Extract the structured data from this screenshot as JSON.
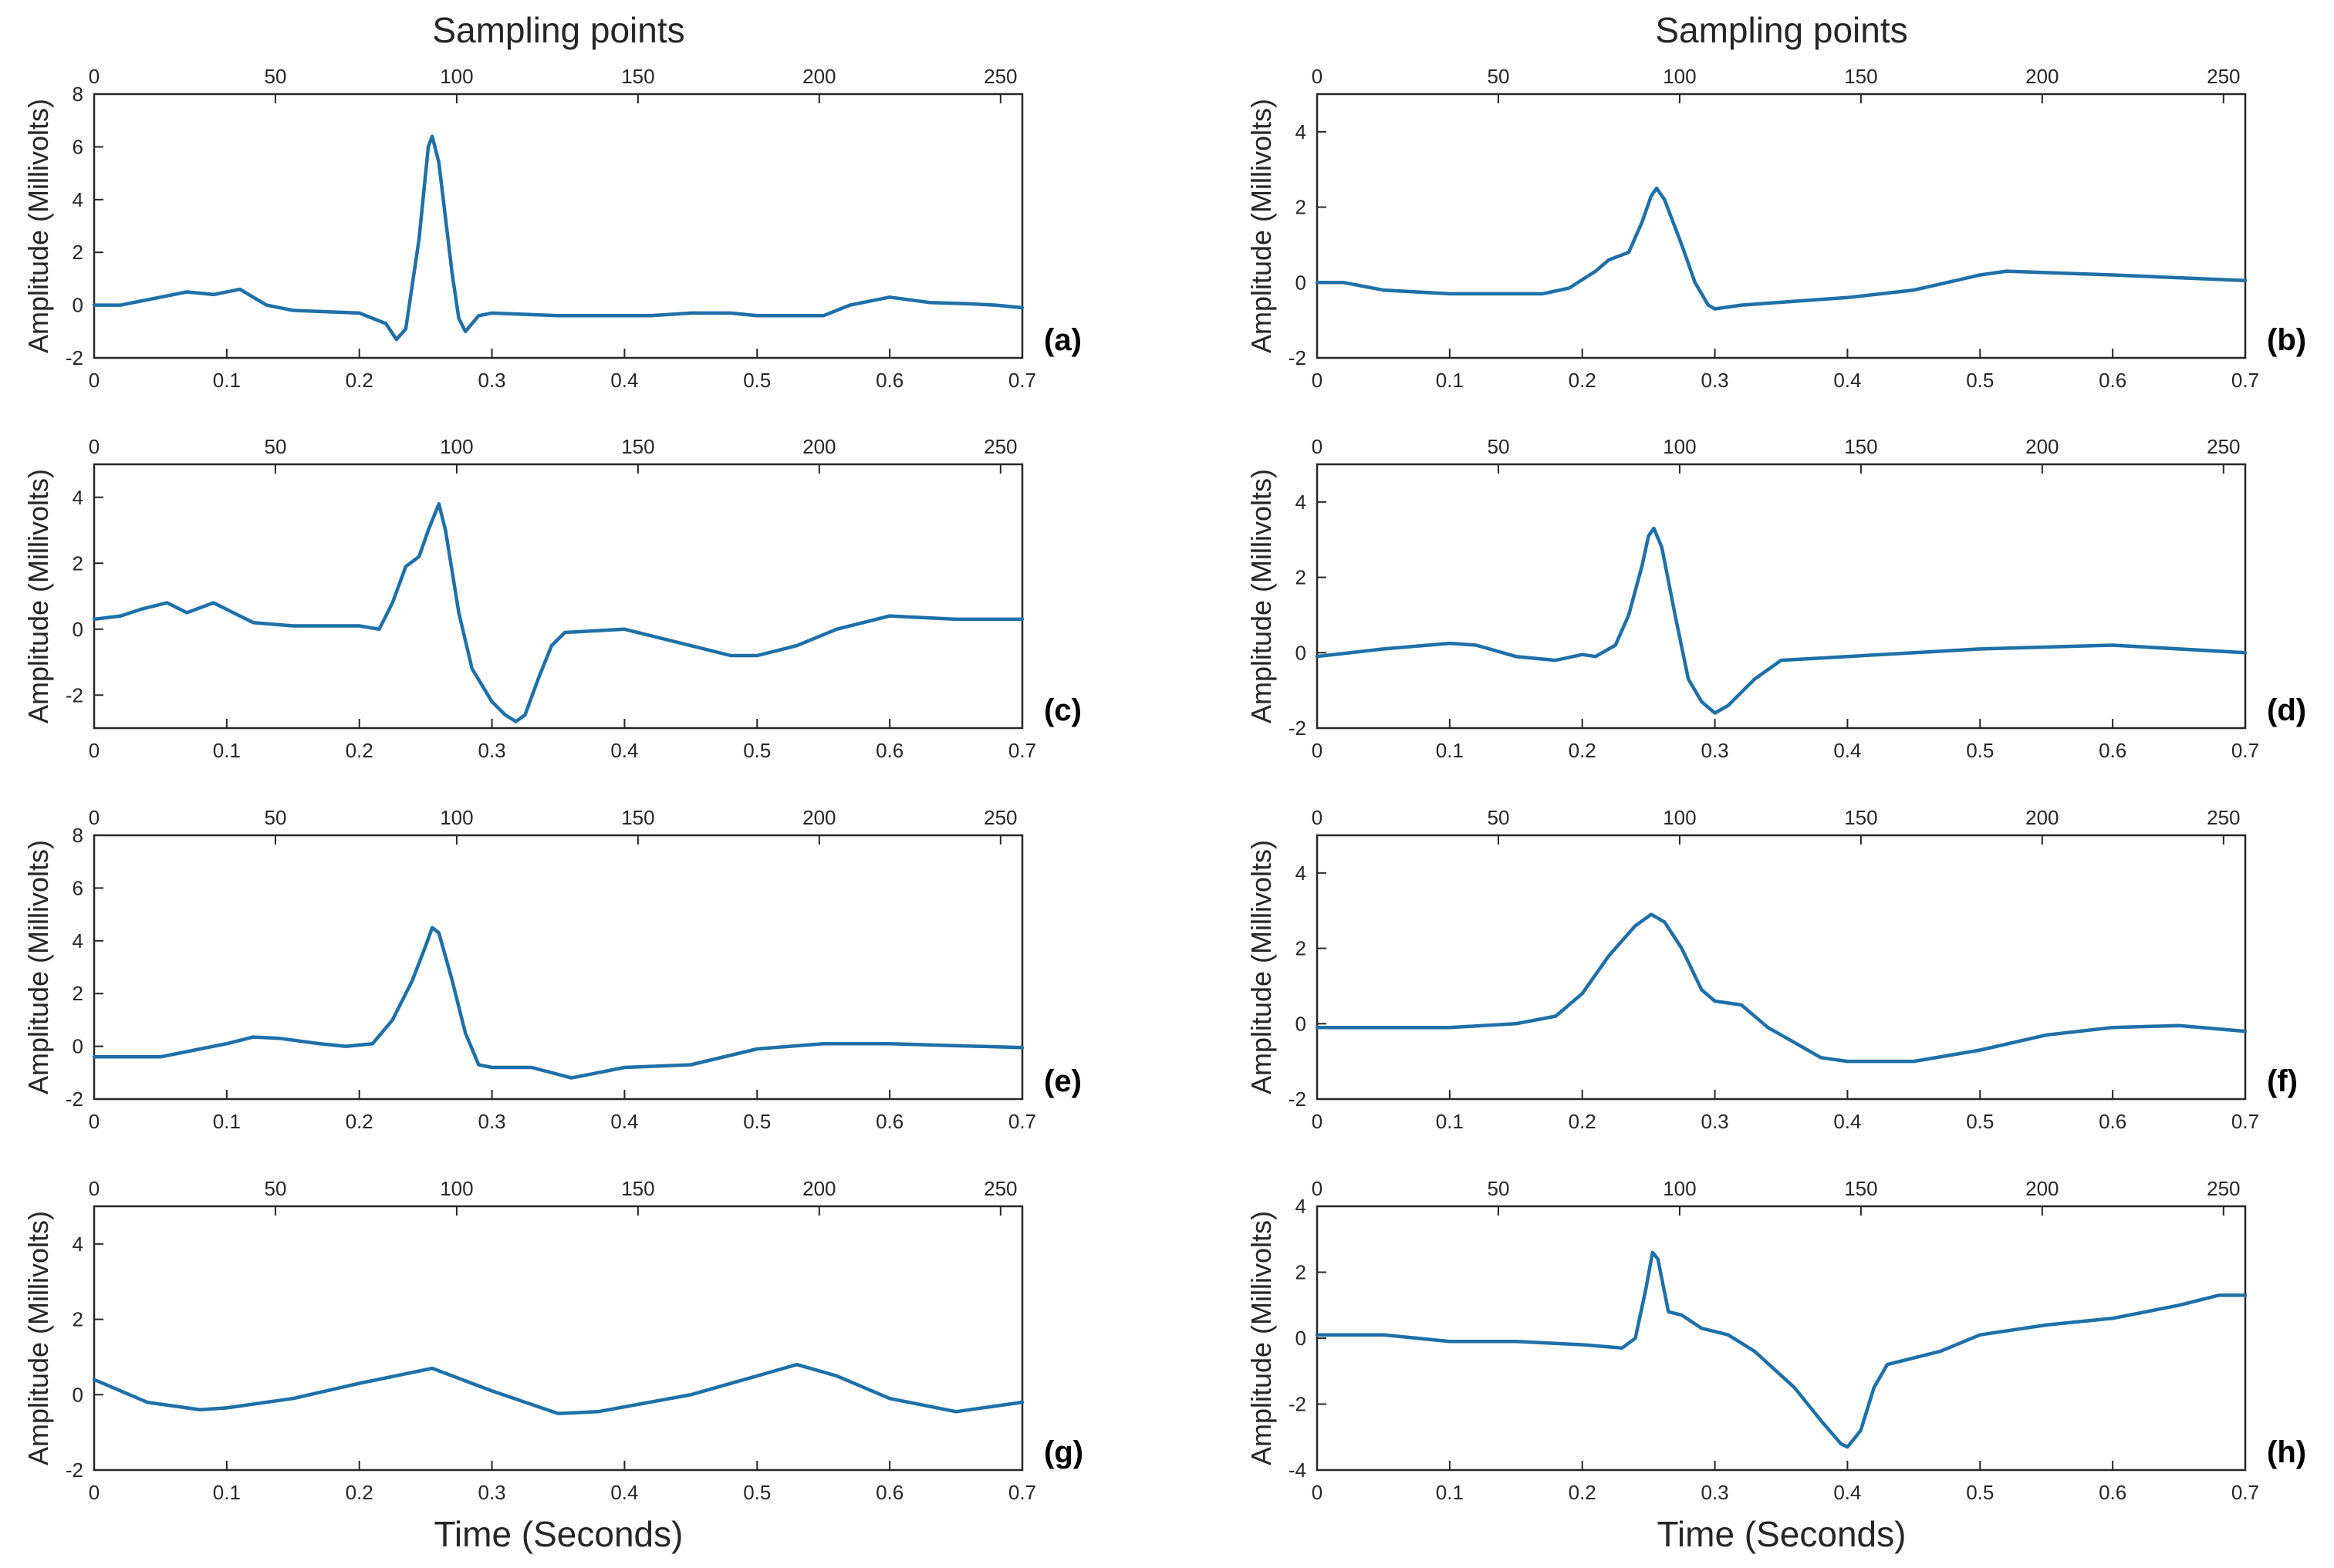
{
  "figure": {
    "top_axis_label": "Sampling points",
    "bottom_axis_label": "Time (Seconds)",
    "y_axis_label": "Amplitude (Millivolts)",
    "line_color": "#1f6fa8",
    "axis_color": "#262626"
  },
  "chart_data": [
    {
      "type": "line",
      "label": "(a)",
      "xlim": [
        0,
        0.7
      ],
      "ylim": [
        -2,
        8
      ],
      "yticks": [
        -2,
        0,
        2,
        4,
        6,
        8
      ],
      "xticks": [
        0,
        0.1,
        0.2,
        0.3,
        0.4,
        0.5,
        0.6,
        0.7
      ],
      "top_xlim": [
        0,
        256
      ],
      "top_xticks": [
        0,
        50,
        100,
        150,
        200,
        250
      ],
      "points": [
        [
          0,
          0
        ],
        [
          0.02,
          0
        ],
        [
          0.05,
          0.3
        ],
        [
          0.07,
          0.5
        ],
        [
          0.09,
          0.4
        ],
        [
          0.11,
          0.6
        ],
        [
          0.13,
          0
        ],
        [
          0.15,
          -0.2
        ],
        [
          0.2,
          -0.3
        ],
        [
          0.22,
          -0.7
        ],
        [
          0.228,
          -1.3
        ],
        [
          0.235,
          -0.9
        ],
        [
          0.245,
          2.5
        ],
        [
          0.252,
          6.0
        ],
        [
          0.255,
          6.4
        ],
        [
          0.26,
          5.4
        ],
        [
          0.27,
          1.2
        ],
        [
          0.275,
          -0.5
        ],
        [
          0.28,
          -1.0
        ],
        [
          0.29,
          -0.4
        ],
        [
          0.3,
          -0.3
        ],
        [
          0.35,
          -0.4
        ],
        [
          0.42,
          -0.4
        ],
        [
          0.45,
          -0.3
        ],
        [
          0.48,
          -0.3
        ],
        [
          0.5,
          -0.4
        ],
        [
          0.55,
          -0.4
        ],
        [
          0.57,
          0
        ],
        [
          0.6,
          0.3
        ],
        [
          0.63,
          0.1
        ],
        [
          0.66,
          0.05
        ],
        [
          0.68,
          0
        ],
        [
          0.7,
          -0.1
        ]
      ]
    },
    {
      "type": "line",
      "label": "(b)",
      "xlim": [
        0,
        0.7
      ],
      "ylim": [
        -2,
        5
      ],
      "yticks": [
        -2,
        0,
        2,
        4
      ],
      "xticks": [
        0,
        0.1,
        0.2,
        0.3,
        0.4,
        0.5,
        0.6,
        0.7
      ],
      "top_xlim": [
        0,
        256
      ],
      "top_xticks": [
        0,
        50,
        100,
        150,
        200,
        250
      ],
      "points": [
        [
          0,
          0
        ],
        [
          0.02,
          0
        ],
        [
          0.05,
          -0.2
        ],
        [
          0.1,
          -0.3
        ],
        [
          0.17,
          -0.3
        ],
        [
          0.19,
          -0.15
        ],
        [
          0.21,
          0.3
        ],
        [
          0.22,
          0.6
        ],
        [
          0.235,
          0.8
        ],
        [
          0.245,
          1.6
        ],
        [
          0.252,
          2.3
        ],
        [
          0.256,
          2.5
        ],
        [
          0.262,
          2.2
        ],
        [
          0.275,
          1.0
        ],
        [
          0.285,
          0
        ],
        [
          0.295,
          -0.6
        ],
        [
          0.3,
          -0.7
        ],
        [
          0.32,
          -0.6
        ],
        [
          0.4,
          -0.4
        ],
        [
          0.45,
          -0.2
        ],
        [
          0.5,
          0.2
        ],
        [
          0.52,
          0.3
        ],
        [
          0.6,
          0.2
        ],
        [
          0.7,
          0.05
        ]
      ]
    },
    {
      "type": "line",
      "label": "(c)",
      "xlim": [
        0,
        0.7
      ],
      "ylim": [
        -3,
        5
      ],
      "yticks": [
        -2,
        0,
        2,
        4
      ],
      "xticks": [
        0,
        0.1,
        0.2,
        0.3,
        0.4,
        0.5,
        0.6,
        0.7
      ],
      "top_xlim": [
        0,
        256
      ],
      "top_xticks": [
        0,
        50,
        100,
        150,
        200,
        250
      ],
      "points": [
        [
          0,
          0.3
        ],
        [
          0.02,
          0.4
        ],
        [
          0.035,
          0.6
        ],
        [
          0.055,
          0.8
        ],
        [
          0.07,
          0.5
        ],
        [
          0.09,
          0.8
        ],
        [
          0.1,
          0.6
        ],
        [
          0.12,
          0.2
        ],
        [
          0.15,
          0.1
        ],
        [
          0.2,
          0.1
        ],
        [
          0.215,
          0
        ],
        [
          0.225,
          0.8
        ],
        [
          0.235,
          1.9
        ],
        [
          0.245,
          2.2
        ],
        [
          0.252,
          3.0
        ],
        [
          0.26,
          3.8
        ],
        [
          0.265,
          3.0
        ],
        [
          0.275,
          0.5
        ],
        [
          0.285,
          -1.2
        ],
        [
          0.3,
          -2.2
        ],
        [
          0.31,
          -2.6
        ],
        [
          0.318,
          -2.8
        ],
        [
          0.325,
          -2.6
        ],
        [
          0.335,
          -1.5
        ],
        [
          0.345,
          -0.5
        ],
        [
          0.355,
          -0.1
        ],
        [
          0.4,
          0
        ],
        [
          0.42,
          -0.2
        ],
        [
          0.45,
          -0.5
        ],
        [
          0.48,
          -0.8
        ],
        [
          0.5,
          -0.8
        ],
        [
          0.53,
          -0.5
        ],
        [
          0.56,
          0
        ],
        [
          0.6,
          0.4
        ],
        [
          0.65,
          0.3
        ],
        [
          0.7,
          0.3
        ]
      ]
    },
    {
      "type": "line",
      "label": "(d)",
      "xlim": [
        0,
        0.7
      ],
      "ylim": [
        -2,
        5
      ],
      "yticks": [
        -2,
        0,
        2,
        4
      ],
      "xticks": [
        0,
        0.1,
        0.2,
        0.3,
        0.4,
        0.5,
        0.6,
        0.7
      ],
      "top_xlim": [
        0,
        256
      ],
      "top_xticks": [
        0,
        50,
        100,
        150,
        200,
        250
      ],
      "points": [
        [
          0,
          -0.1
        ],
        [
          0.05,
          0.1
        ],
        [
          0.1,
          0.25
        ],
        [
          0.12,
          0.2
        ],
        [
          0.15,
          -0.1
        ],
        [
          0.18,
          -0.2
        ],
        [
          0.2,
          -0.05
        ],
        [
          0.21,
          -0.1
        ],
        [
          0.225,
          0.2
        ],
        [
          0.235,
          1.0
        ],
        [
          0.245,
          2.3
        ],
        [
          0.25,
          3.1
        ],
        [
          0.254,
          3.3
        ],
        [
          0.26,
          2.8
        ],
        [
          0.27,
          1.0
        ],
        [
          0.28,
          -0.7
        ],
        [
          0.29,
          -1.3
        ],
        [
          0.3,
          -1.6
        ],
        [
          0.31,
          -1.4
        ],
        [
          0.33,
          -0.7
        ],
        [
          0.35,
          -0.2
        ],
        [
          0.4,
          -0.1
        ],
        [
          0.5,
          0.1
        ],
        [
          0.6,
          0.2
        ],
        [
          0.7,
          0
        ]
      ]
    },
    {
      "type": "line",
      "label": "(e)",
      "xlim": [
        0,
        0.7
      ],
      "ylim": [
        -2,
        8
      ],
      "yticks": [
        -2,
        0,
        2,
        4,
        6,
        8
      ],
      "xticks": [
        0,
        0.1,
        0.2,
        0.3,
        0.4,
        0.5,
        0.6,
        0.7
      ],
      "top_xlim": [
        0,
        256
      ],
      "top_xticks": [
        0,
        50,
        100,
        150,
        200,
        250
      ],
      "points": [
        [
          0,
          -0.4
        ],
        [
          0.05,
          -0.4
        ],
        [
          0.08,
          -0.1
        ],
        [
          0.1,
          0.1
        ],
        [
          0.12,
          0.35
        ],
        [
          0.14,
          0.3
        ],
        [
          0.17,
          0.1
        ],
        [
          0.19,
          0
        ],
        [
          0.21,
          0.1
        ],
        [
          0.225,
          1.0
        ],
        [
          0.24,
          2.5
        ],
        [
          0.25,
          3.8
        ],
        [
          0.255,
          4.5
        ],
        [
          0.26,
          4.3
        ],
        [
          0.27,
          2.5
        ],
        [
          0.28,
          0.5
        ],
        [
          0.29,
          -0.7
        ],
        [
          0.3,
          -0.8
        ],
        [
          0.33,
          -0.8
        ],
        [
          0.36,
          -1.2
        ],
        [
          0.38,
          -1.0
        ],
        [
          0.4,
          -0.8
        ],
        [
          0.45,
          -0.7
        ],
        [
          0.5,
          -0.1
        ],
        [
          0.55,
          0.1
        ],
        [
          0.6,
          0.1
        ],
        [
          0.7,
          -0.05
        ]
      ]
    },
    {
      "type": "line",
      "label": "(f)",
      "xlim": [
        0,
        0.7
      ],
      "ylim": [
        -2,
        5
      ],
      "yticks": [
        -2,
        0,
        2,
        4
      ],
      "xticks": [
        0,
        0.1,
        0.2,
        0.3,
        0.4,
        0.5,
        0.6,
        0.7
      ],
      "top_xlim": [
        0,
        256
      ],
      "top_xticks": [
        0,
        50,
        100,
        150,
        200,
        250
      ],
      "points": [
        [
          0,
          -0.1
        ],
        [
          0.1,
          -0.1
        ],
        [
          0.15,
          0
        ],
        [
          0.18,
          0.2
        ],
        [
          0.2,
          0.8
        ],
        [
          0.22,
          1.8
        ],
        [
          0.24,
          2.6
        ],
        [
          0.252,
          2.9
        ],
        [
          0.262,
          2.7
        ],
        [
          0.275,
          2.0
        ],
        [
          0.29,
          0.9
        ],
        [
          0.3,
          0.6
        ],
        [
          0.32,
          0.5
        ],
        [
          0.34,
          -0.1
        ],
        [
          0.36,
          -0.5
        ],
        [
          0.38,
          -0.9
        ],
        [
          0.4,
          -1.0
        ],
        [
          0.45,
          -1.0
        ],
        [
          0.5,
          -0.7
        ],
        [
          0.55,
          -0.3
        ],
        [
          0.6,
          -0.1
        ],
        [
          0.65,
          -0.05
        ],
        [
          0.7,
          -0.2
        ]
      ]
    },
    {
      "type": "line",
      "label": "(g)",
      "xlim": [
        0,
        0.7
      ],
      "ylim": [
        -2,
        5
      ],
      "yticks": [
        -2,
        0,
        2,
        4
      ],
      "xticks": [
        0,
        0.1,
        0.2,
        0.3,
        0.4,
        0.5,
        0.6,
        0.7
      ],
      "top_xlim": [
        0,
        256
      ],
      "top_xticks": [
        0,
        50,
        100,
        150,
        200,
        250
      ],
      "points": [
        [
          0,
          0.4
        ],
        [
          0.04,
          -0.2
        ],
        [
          0.08,
          -0.4
        ],
        [
          0.1,
          -0.35
        ],
        [
          0.15,
          -0.1
        ],
        [
          0.2,
          0.3
        ],
        [
          0.255,
          0.7
        ],
        [
          0.3,
          0.1
        ],
        [
          0.35,
          -0.5
        ],
        [
          0.38,
          -0.45
        ],
        [
          0.45,
          0
        ],
        [
          0.5,
          0.5
        ],
        [
          0.53,
          0.8
        ],
        [
          0.56,
          0.5
        ],
        [
          0.6,
          -0.1
        ],
        [
          0.65,
          -0.45
        ],
        [
          0.7,
          -0.2
        ]
      ]
    },
    {
      "type": "line",
      "label": "(h)",
      "xlim": [
        0,
        0.7
      ],
      "ylim": [
        -4,
        4
      ],
      "yticks": [
        -4,
        -2,
        0,
        2,
        4
      ],
      "xticks": [
        0,
        0.1,
        0.2,
        0.3,
        0.4,
        0.5,
        0.6,
        0.7
      ],
      "top_xlim": [
        0,
        256
      ],
      "top_xticks": [
        0,
        50,
        100,
        150,
        200,
        250
      ],
      "points": [
        [
          0,
          0.1
        ],
        [
          0.05,
          0.1
        ],
        [
          0.1,
          -0.1
        ],
        [
          0.15,
          -0.1
        ],
        [
          0.2,
          -0.2
        ],
        [
          0.23,
          -0.3
        ],
        [
          0.24,
          0
        ],
        [
          0.248,
          1.5
        ],
        [
          0.253,
          2.6
        ],
        [
          0.257,
          2.4
        ],
        [
          0.265,
          0.8
        ],
        [
          0.275,
          0.7
        ],
        [
          0.29,
          0.3
        ],
        [
          0.31,
          0.1
        ],
        [
          0.33,
          -0.4
        ],
        [
          0.36,
          -1.5
        ],
        [
          0.38,
          -2.5
        ],
        [
          0.395,
          -3.2
        ],
        [
          0.4,
          -3.3
        ],
        [
          0.41,
          -2.8
        ],
        [
          0.42,
          -1.5
        ],
        [
          0.43,
          -0.8
        ],
        [
          0.47,
          -0.4
        ],
        [
          0.5,
          0.1
        ],
        [
          0.55,
          0.4
        ],
        [
          0.6,
          0.6
        ],
        [
          0.65,
          1.0
        ],
        [
          0.68,
          1.3
        ],
        [
          0.7,
          1.3
        ]
      ]
    }
  ]
}
